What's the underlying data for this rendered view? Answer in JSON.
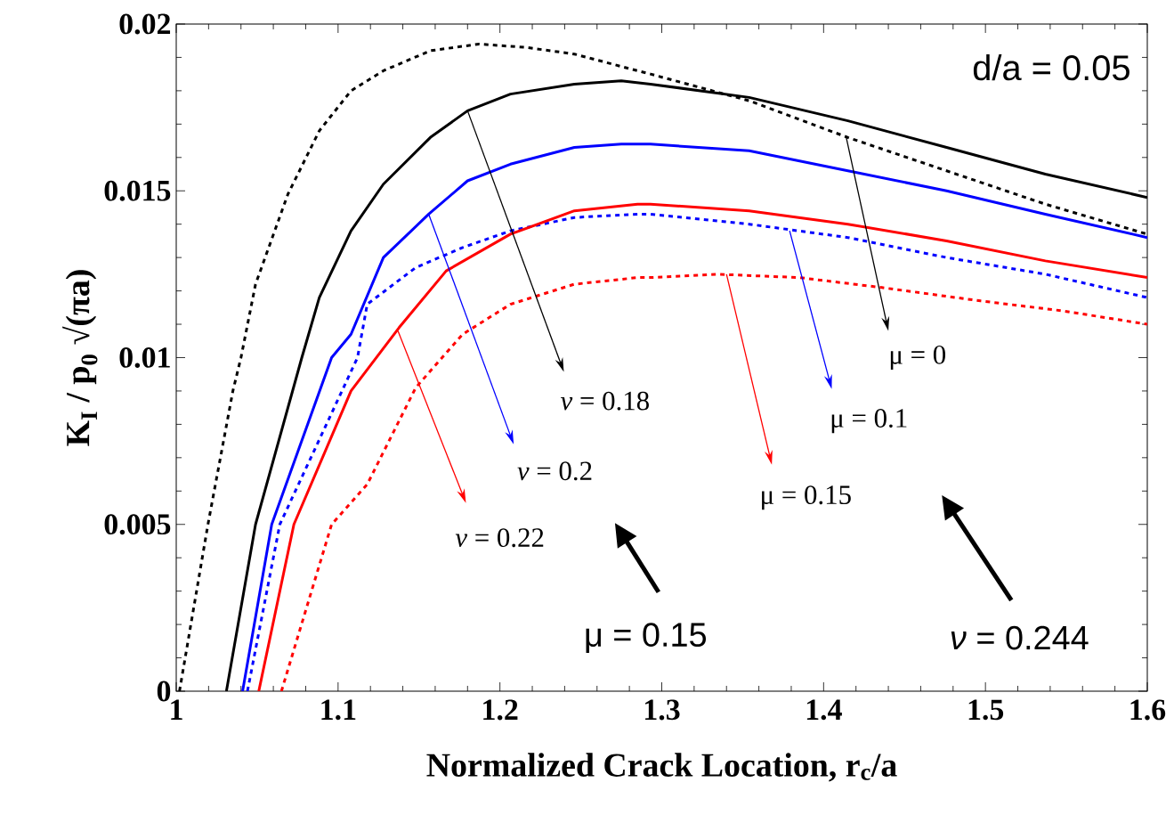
{
  "chart_data": {
    "type": "line",
    "xlabel": "Normalized Crack Location, r$_{c}$/a",
    "ylabel": "K$_{I}$ / p$_{0}$ √(πa)",
    "xlim": [
      1,
      1.6
    ],
    "ylim": [
      0,
      0.02
    ],
    "xticks": [
      1,
      1.1,
      1.2,
      1.3,
      1.4,
      1.5,
      1.6
    ],
    "yticks": [
      0,
      0.005,
      0.01,
      0.015,
      0.02
    ],
    "series": [
      {
        "color": "#000000",
        "line_style": "dotted",
        "x": [
          1.002,
          1.0196,
          1.035,
          1.04,
          1.049,
          1.069,
          1.0884,
          1.108,
          1.128,
          1.157,
          1.187,
          1.216,
          1.246,
          1.285,
          1.293,
          1.354,
          1.415,
          1.476,
          1.537,
          1.6
        ],
        "values": [
          0,
          0.005,
          0.009,
          0.01,
          0.0122,
          0.0149,
          0.0168,
          0.018,
          0.0186,
          0.0192,
          0.0194,
          0.0193,
          0.0191,
          0.0186,
          0.0185,
          0.0177,
          0.0166,
          0.0156,
          0.0146,
          0.0137
        ]
      },
      {
        "color": "#000000",
        "line_style": "solid",
        "x": [
          1.031,
          1.049,
          1.0776,
          1.0884,
          1.108,
          1.128,
          1.157,
          1.18,
          1.2065,
          1.246,
          1.275,
          1.293,
          1.354,
          1.415,
          1.476,
          1.537,
          1.6
        ],
        "values": [
          0,
          0.005,
          0.01,
          0.0118,
          0.0138,
          0.0152,
          0.0166,
          0.0174,
          0.0179,
          0.0182,
          0.0183,
          0.0182,
          0.0178,
          0.0171,
          0.0163,
          0.0155,
          0.0148
        ]
      },
      {
        "color": "#0000ff",
        "line_style": "solid",
        "x": [
          1.041,
          1.059,
          1.096,
          1.108,
          1.128,
          1.156,
          1.18,
          1.2065,
          1.246,
          1.275,
          1.293,
          1.354,
          1.415,
          1.476,
          1.537,
          1.6
        ],
        "values": [
          0,
          0.005,
          0.01,
          0.0107,
          0.013,
          0.0143,
          0.0153,
          0.0158,
          0.0163,
          0.0164,
          0.0164,
          0.0162,
          0.0156,
          0.015,
          0.0143,
          0.0136
        ]
      },
      {
        "color": "#0000ff",
        "line_style": "dotted",
        "x": [
          1.044,
          1.064,
          1.112,
          1.118,
          1.148,
          1.177,
          1.2065,
          1.246,
          1.285,
          1.293,
          1.354,
          1.415,
          1.476,
          1.537,
          1.6
        ],
        "values": [
          0,
          0.005,
          0.01,
          0.0116,
          0.0127,
          0.0133,
          0.0138,
          0.0142,
          0.0143,
          0.0143,
          0.014,
          0.0136,
          0.013,
          0.0125,
          0.0118
        ]
      },
      {
        "color": "#ff0000",
        "line_style": "solid",
        "x": [
          1.051,
          1.0727,
          1.108,
          1.1377,
          1.1668,
          1.2065,
          1.246,
          1.285,
          1.293,
          1.354,
          1.415,
          1.476,
          1.537,
          1.6
        ],
        "values": [
          0,
          0.005,
          0.009,
          0.0109,
          0.0126,
          0.0137,
          0.0144,
          0.0146,
          0.0146,
          0.0144,
          0.014,
          0.0135,
          0.0129,
          0.0124
        ]
      },
      {
        "color": "#ff0000",
        "line_style": "dotted",
        "x": [
          1.065,
          1.096,
          1.118,
          1.148,
          1.177,
          1.2065,
          1.246,
          1.285,
          1.293,
          1.334,
          1.385,
          1.436,
          1.497,
          1.548,
          1.6
        ],
        "values": [
          0,
          0.005,
          0.0062,
          0.0091,
          0.0107,
          0.0116,
          0.0122,
          0.0124,
          0.0124,
          0.0125,
          0.0124,
          0.0121,
          0.0117,
          0.0114,
          0.011
        ]
      }
    ],
    "annotations": [
      "d/a = 0.05",
      {
        "text": "*ν* = 0.18",
        "x": 1.18,
        "y": 0.0174
      },
      {
        "text": "*ν* = 0.2",
        "x": 1.156,
        "y": 0.0143
      },
      {
        "text": "*ν* = 0.22",
        "x": 1.137,
        "y": 0.0108
      },
      {
        "text": "μ = 0",
        "x": 1.414,
        "y": 0.0166
      },
      {
        "text": "μ = 0.1",
        "x": 1.379,
        "y": 0.0138
      },
      {
        "text": "μ = 0.15",
        "x": 1.34,
        "y": 0.0125
      },
      "μ = 0.15",
      "*ν* = 0.244"
    ]
  }
}
